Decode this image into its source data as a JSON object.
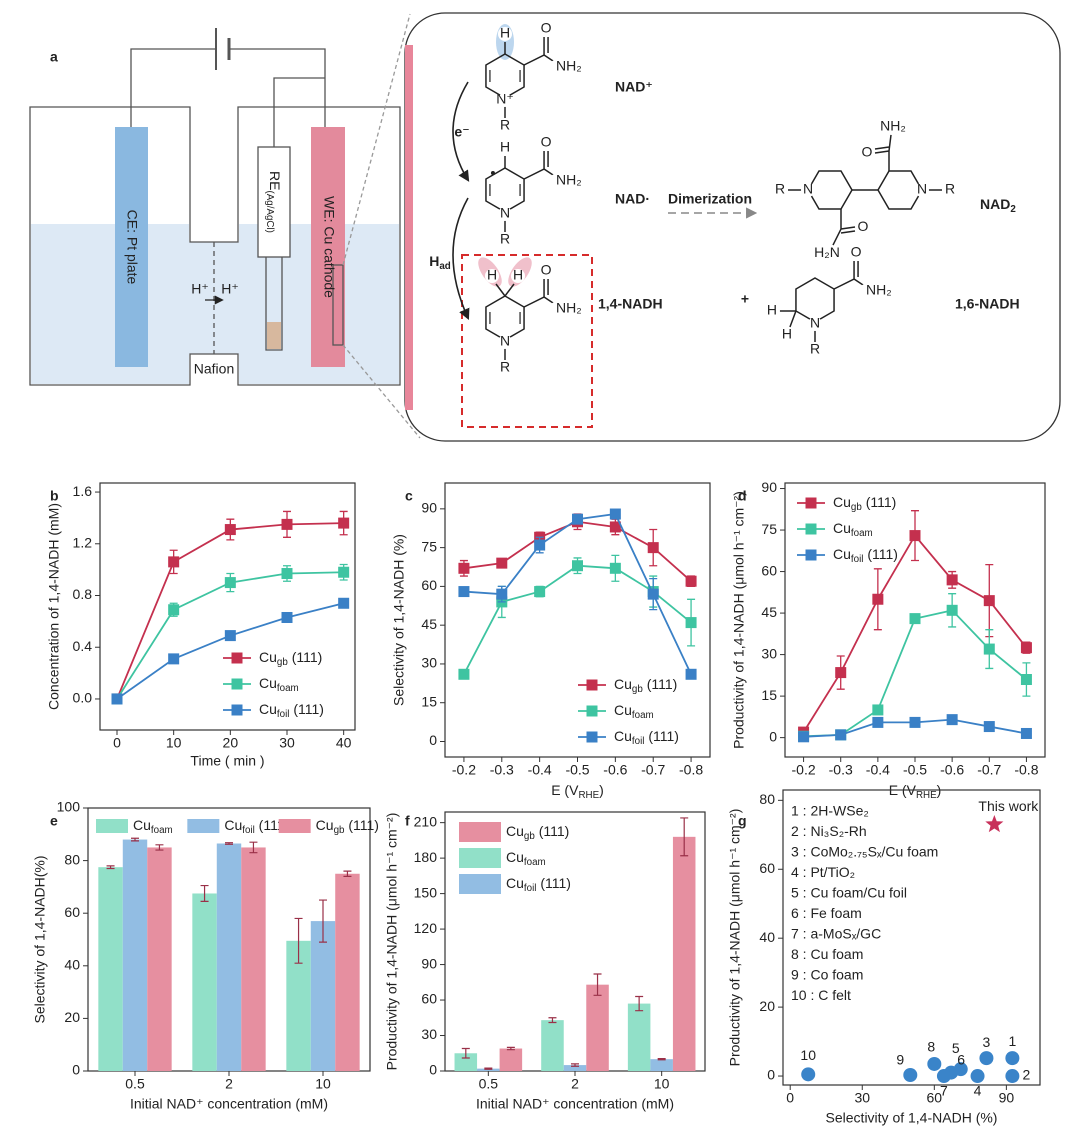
{
  "diagram": {
    "label": "a",
    "ce": "CE: Pt plate",
    "re": [
      "RE",
      "(Ag/AgCl)"
    ],
    "we": "WE: Cu cathode",
    "proton_left": "H⁺",
    "proton_right": "H⁺",
    "membrane": "Nafion",
    "electron": "e⁻",
    "adsorbed_h": [
      "H",
      "ad"
    ],
    "dimerization": "Dimerization",
    "species": {
      "nad": "NAD⁺",
      "radical": "NAD·",
      "dimer": [
        "NAD",
        "2"
      ],
      "nadh14": "1,4-NADH",
      "plus": "+",
      "nadh16": "1,6-NADH"
    },
    "molecules": {
      "nad": [
        "H",
        "O",
        "NH₂",
        "N⁺",
        "R"
      ],
      "radical": [
        "H",
        "O",
        "NH₂",
        "N",
        "R"
      ],
      "dimer": [
        "O",
        "NH₂",
        "R",
        "N",
        "N",
        "R",
        "H₂N",
        "O"
      ],
      "nadh14": [
        "H",
        "H",
        "O",
        "NH₂",
        "N",
        "R"
      ],
      "nadh16": [
        "O",
        "NH₂",
        "H",
        "H",
        "N",
        "R"
      ]
    }
  },
  "chart_data": [
    {
      "type": "line",
      "label": "b",
      "x": [
        0,
        10,
        20,
        30,
        40
      ],
      "xlim": [
        -3,
        42
      ],
      "xticks": [
        0,
        10,
        20,
        30,
        40
      ],
      "ylim": [
        -0.24,
        1.67
      ],
      "yticks": [
        {
          "value": 0,
          "label": "0.0"
        },
        {
          "value": 0.4,
          "label": "0.4"
        },
        {
          "value": 0.8,
          "label": "0.8"
        },
        {
          "value": 1.2,
          "label": "1.2"
        },
        {
          "value": 1.6,
          "label": "1.6"
        }
      ],
      "xlabel": "Time ( min )",
      "ylabel": "Concentration of 1,4-NADH (mM)",
      "legend": "lower right",
      "series": [
        {
          "name": [
            "Cu",
            "gb",
            " (111)"
          ],
          "color": "#c4304e",
          "values": [
            0,
            1.06,
            1.31,
            1.35,
            1.36
          ],
          "errors": [
            0,
            0.09,
            0.08,
            0.1,
            0.09
          ]
        },
        {
          "name": [
            "Cu",
            "foam"
          ],
          "color": "#3ec4a1",
          "values": [
            0,
            0.69,
            0.9,
            0.97,
            0.98
          ],
          "errors": [
            0,
            0.05,
            0.07,
            0.06,
            0.06
          ]
        },
        {
          "name": [
            "Cu",
            "foil",
            " (111)"
          ],
          "color": "#3a80c6",
          "values": [
            0,
            0.31,
            0.49,
            0.63,
            0.74
          ],
          "errors": [
            0,
            0.02,
            0.02,
            0.02,
            0.03
          ]
        }
      ]
    },
    {
      "type": "line",
      "label": "c",
      "categories": [
        "-0.2",
        "-0.3",
        "-0.4",
        "-0.5",
        "-0.6",
        "-0.7",
        "-0.8"
      ],
      "ylim": [
        -6,
        100
      ],
      "yticks": [
        0,
        15,
        30,
        45,
        60,
        75,
        90
      ],
      "xlabel": [
        "E (V",
        "RHE",
        ")"
      ],
      "ylabel": "Selectivity of 1,4-NADH (%)",
      "legend": "lower right",
      "series": [
        {
          "name": [
            "Cu",
            "gb",
            " (111)"
          ],
          "color": "#c4304e",
          "values": [
            67,
            69,
            79,
            85,
            83,
            75,
            62
          ],
          "errors": [
            3,
            1.5,
            2,
            3,
            3,
            7,
            2
          ]
        },
        {
          "name": [
            "Cu",
            "foam"
          ],
          "color": "#3ec4a1",
          "values": [
            26,
            54,
            58,
            68,
            67,
            58,
            46
          ],
          "errors": [
            1,
            6,
            2,
            3,
            5,
            6,
            9
          ]
        },
        {
          "name": [
            "Cu",
            "foil",
            " (111)"
          ],
          "color": "#3a80c6",
          "values": [
            58,
            57,
            76,
            86,
            88,
            57,
            26
          ],
          "errors": [
            1.5,
            3,
            3,
            1.5,
            1.5,
            6,
            1.5
          ]
        }
      ]
    },
    {
      "type": "line",
      "label": "d",
      "categories": [
        "-0.2",
        "-0.3",
        "-0.4",
        "-0.5",
        "-0.6",
        "-0.7",
        "-0.8"
      ],
      "ylim": [
        -7,
        92
      ],
      "yticks": [
        0,
        15,
        30,
        45,
        60,
        75,
        90
      ],
      "xlabel": [
        "E (V",
        "RHE",
        ")"
      ],
      "ylabel": "Productivity of 1,4-NADH (μmol h⁻¹ cm⁻²)",
      "legend": "upper left",
      "series": [
        {
          "name": [
            "Cu",
            "gb",
            " (111)"
          ],
          "color": "#c4304e",
          "values": [
            2,
            23.5,
            50,
            73,
            57,
            49.5,
            32.5
          ],
          "errors": [
            1,
            6,
            11,
            9,
            3,
            13,
            2
          ]
        },
        {
          "name": [
            "Cu",
            "foam"
          ],
          "color": "#3ec4a1",
          "values": [
            0.5,
            1,
            10,
            43,
            46,
            32,
            21
          ],
          "errors": [
            0.5,
            1,
            1,
            1,
            6,
            7,
            6
          ]
        },
        {
          "name": [
            "Cu",
            "foil",
            " (111)"
          ],
          "color": "#3a80c6",
          "values": [
            0.3,
            1,
            5.5,
            5.5,
            6.5,
            4,
            1.5
          ],
          "errors": [
            0.5,
            0.5,
            1,
            1,
            1,
            1,
            1
          ]
        }
      ]
    },
    {
      "type": "bar",
      "label": "e",
      "categories": [
        "0.5",
        "2",
        "10"
      ],
      "ylim": [
        0,
        100
      ],
      "yticks": [
        0,
        20,
        40,
        60,
        80,
        100
      ],
      "xlabel": "Initial NAD⁺ concentration (mM)",
      "ylabel": "Selectivity of 1,4-NADH(%)",
      "legend": "upper center",
      "series": [
        {
          "name": [
            "Cu",
            "foam"
          ],
          "color": "#91e0c8",
          "values": [
            77.5,
            67.5,
            49.5
          ],
          "errors": [
            0.5,
            3,
            8.5
          ]
        },
        {
          "name": [
            "Cu",
            "foil",
            " (111)"
          ],
          "color": "#92bde3",
          "values": [
            88,
            86.5,
            57
          ],
          "errors": [
            0.5,
            0.3,
            8
          ]
        },
        {
          "name": [
            "Cu",
            "gb",
            " (111)"
          ],
          "color": "#e68fa0",
          "values": [
            85,
            85,
            75
          ],
          "errors": [
            1,
            2,
            1
          ]
        }
      ]
    },
    {
      "type": "bar",
      "label": "f",
      "categories": [
        "0.5",
        "2",
        "10"
      ],
      "ylim": [
        0,
        219
      ],
      "yticks": [
        0,
        30,
        60,
        90,
        120,
        150,
        180,
        210
      ],
      "xlabel": "Initial NAD⁺ concentration (mM)",
      "ylabel": "Productivity of 1,4-NADH (μmol h⁻¹ cm⁻²)",
      "legend": "upper left",
      "series": [
        {
          "name": [
            "Cu",
            "gb",
            " (111)"
          ],
          "color": "#e68fa0",
          "values": [
            19,
            73,
            198
          ],
          "errors": [
            1,
            9,
            16
          ]
        },
        {
          "name": [
            "Cu",
            "foam"
          ],
          "color": "#91e0c8",
          "values": [
            15,
            43,
            57
          ],
          "errors": [
            4,
            2,
            6
          ]
        },
        {
          "name": [
            "Cu",
            "foil",
            " (111)"
          ],
          "color": "#92bde3",
          "values": [
            2,
            5,
            10
          ],
          "errors": [
            0.5,
            1,
            0.5
          ]
        }
      ]
    },
    {
      "type": "scatter",
      "label": "g",
      "color": "#3a84c9",
      "x": [
        92.5,
        92.5,
        81.7,
        78,
        71,
        67,
        64,
        60,
        50,
        7.5
      ],
      "y": [
        5.2,
        0,
        5.2,
        0,
        2,
        1,
        0,
        3.5,
        0.3,
        0.5
      ],
      "point_labels": [
        "1",
        "2",
        "3",
        "4",
        "5",
        "6",
        "7",
        "8",
        "9",
        "10"
      ],
      "highlight": {
        "label": "This work",
        "x": 85,
        "y": 73,
        "color": "#c8305a"
      },
      "legend": "upper left",
      "legend_items": [
        "1 : 2H-WSe₂",
        "2 : Ni₃S₂-Rh",
        "3 : CoMo₂.₇₅Sₓ/Cu foam",
        "4 : Pt/TiO₂",
        "5 : Cu foam/Cu foil",
        "6 : Fe foam",
        "7 : a-MoSₓ/GC",
        "8 : Cu foam",
        "9 : Co foam",
        "10 : C felt"
      ],
      "xlim": [
        -3,
        104
      ],
      "xticks": [
        0,
        30,
        60,
        90
      ],
      "ylim": [
        -2.6,
        83
      ],
      "yticks": [
        0,
        20,
        40,
        60,
        80
      ],
      "xlabel": "Selectivity of 1,4-NADH (%)",
      "ylabel": "Productivity of 1,4-NADH (μmol h⁻¹ cm⁻²)"
    }
  ]
}
